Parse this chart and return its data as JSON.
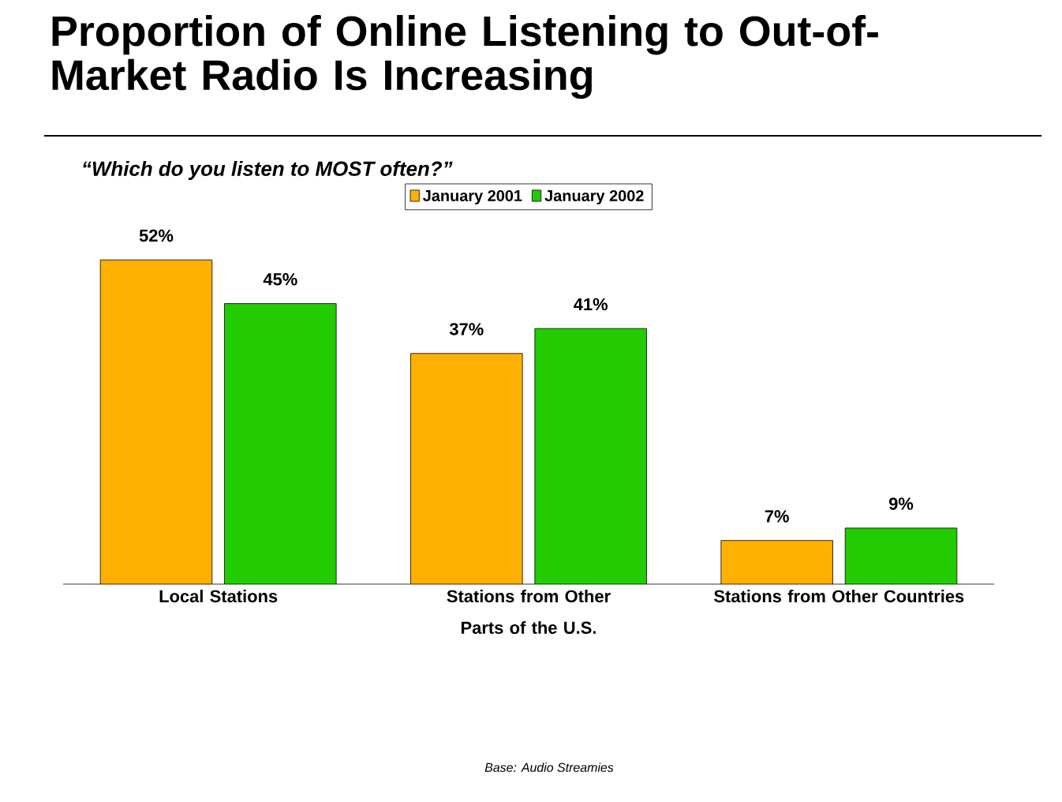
{
  "chart_data": {
    "type": "bar",
    "title": "Proportion of Online Listening to Out-of-Market Radio Is Increasing",
    "subtitle": "“Which do you listen to MOST often?”",
    "categories": [
      "Local Stations",
      "Stations from Other Parts of the U.S.",
      "Stations from Other Countries"
    ],
    "series": [
      {
        "name": "January 2001",
        "color": "#ffb000",
        "values": [
          52,
          37,
          7
        ],
        "value_labels": [
          "52%",
          "37%",
          "7%"
        ]
      },
      {
        "name": "January 2002",
        "color": "#22cc00",
        "values": [
          45,
          41,
          9
        ],
        "value_labels": [
          "45%",
          "41%",
          "9%"
        ]
      }
    ],
    "legend": "top",
    "annotations": [
      "Base: Audio Streamies"
    ]
  }
}
